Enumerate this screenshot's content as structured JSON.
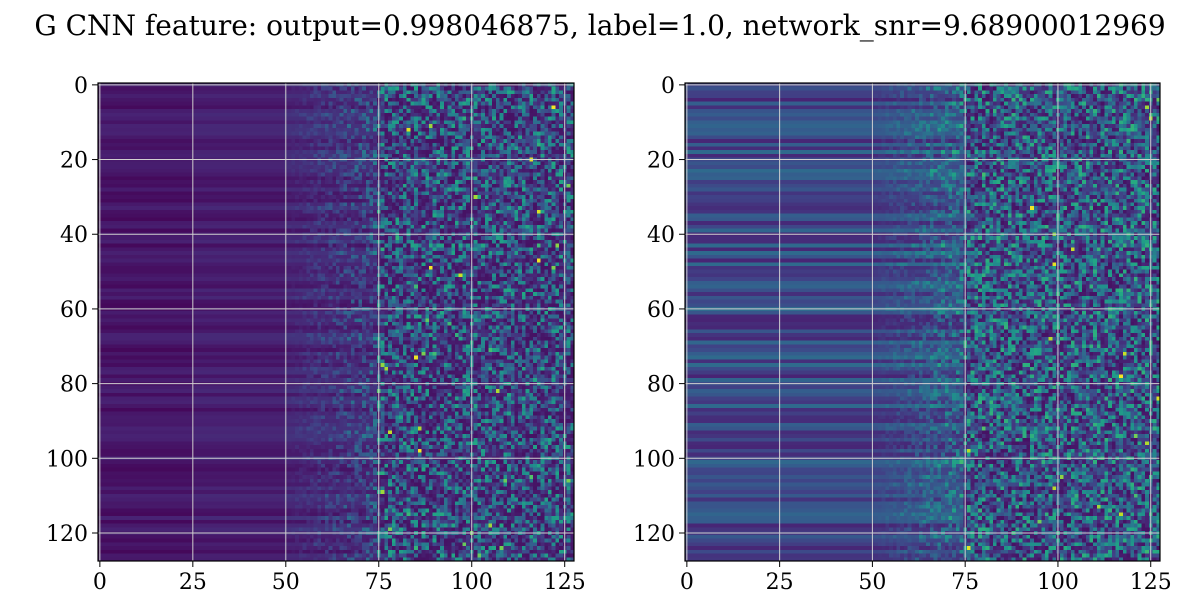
{
  "title": "G CNN feature: output=0.998046875, label=1.0, network_snr=9.68900012969",
  "chart_data": [
    {
      "type": "heatmap",
      "colormap": "viridis",
      "rows": 128,
      "cols": 128,
      "xlim": [
        0,
        127
      ],
      "ylim": [
        127,
        0
      ],
      "xticks": [
        "0",
        "25",
        "50",
        "75",
        "100",
        "125"
      ],
      "yticks": [
        "0",
        "20",
        "40",
        "60",
        "80",
        "100",
        "120"
      ],
      "grid": true
    },
    {
      "type": "heatmap",
      "colormap": "viridis",
      "rows": 128,
      "cols": 128,
      "xlim": [
        0,
        127
      ],
      "ylim": [
        127,
        0
      ],
      "xticks": [
        "0",
        "25",
        "50",
        "75",
        "100",
        "125"
      ],
      "yticks": [
        "0",
        "20",
        "40",
        "60",
        "80",
        "100",
        "120"
      ],
      "grid": true
    }
  ]
}
